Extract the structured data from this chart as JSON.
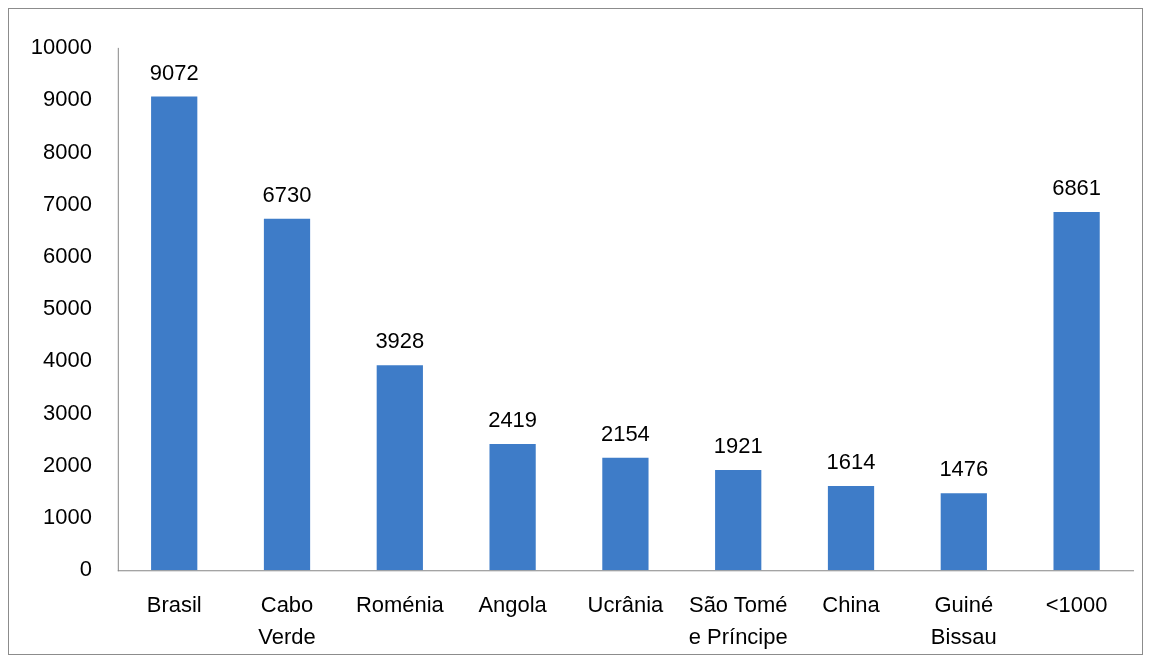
{
  "chart_data": {
    "type": "bar",
    "categories": [
      "Brasil",
      "Cabo Verde",
      "Roménia",
      "Angola",
      "Ucrânia",
      "São Tomé e Príncipe",
      "China",
      "Guiné Bissau",
      "<1000"
    ],
    "values": [
      9072,
      6730,
      3928,
      2419,
      2154,
      1921,
      1614,
      1476,
      6861
    ],
    "color": "#3e7cc8",
    "ylim": [
      0,
      10000
    ],
    "yticks": [
      0,
      1000,
      2000,
      3000,
      4000,
      5000,
      6000,
      7000,
      8000,
      9000,
      10000
    ],
    "data_labels": true
  }
}
